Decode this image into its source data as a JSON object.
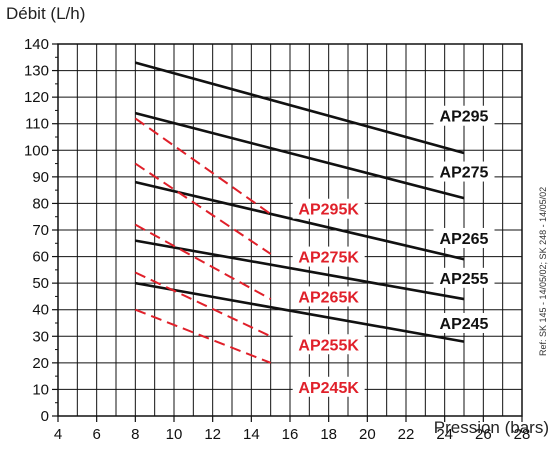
{
  "chart_data": {
    "type": "line",
    "ylabel": "Débit (L/h)",
    "xlabel": "Pression (bars)",
    "xlim": [
      4,
      28
    ],
    "ylim": [
      0,
      140
    ],
    "x_ticks": [
      "4",
      "6",
      "8",
      "10",
      "12",
      "14",
      "16",
      "18",
      "20",
      "22",
      "24",
      "26",
      "28"
    ],
    "y_ticks": [
      "0",
      "10",
      "20",
      "30",
      "40",
      "50",
      "60",
      "70",
      "80",
      "90",
      "100",
      "110",
      "120",
      "130",
      "140"
    ],
    "grid": true,
    "note": "Ref: SK 145 - 14/05/02; SK 248 - 14/05/02",
    "series": [
      {
        "name": "AP295",
        "style": "solid",
        "color": "#111111",
        "points": [
          [
            8,
            133
          ],
          [
            25,
            99
          ]
        ]
      },
      {
        "name": "AP275",
        "style": "solid",
        "color": "#111111",
        "points": [
          [
            8,
            114
          ],
          [
            25,
            82
          ]
        ]
      },
      {
        "name": "AP265",
        "style": "solid",
        "color": "#111111",
        "points": [
          [
            8,
            88
          ],
          [
            25,
            59
          ]
        ]
      },
      {
        "name": "AP255",
        "style": "solid",
        "color": "#111111",
        "points": [
          [
            8,
            66
          ],
          [
            25,
            44
          ]
        ]
      },
      {
        "name": "AP245",
        "style": "solid",
        "color": "#111111",
        "points": [
          [
            8,
            50
          ],
          [
            25,
            28
          ]
        ]
      },
      {
        "name": "AP295K",
        "style": "dashed",
        "color": "#e0202a",
        "points": [
          [
            8,
            112
          ],
          [
            15,
            76
          ]
        ]
      },
      {
        "name": "AP275K",
        "style": "dashed",
        "color": "#e0202a",
        "points": [
          [
            8,
            95
          ],
          [
            15,
            61
          ]
        ]
      },
      {
        "name": "AP265K",
        "style": "dashed",
        "color": "#e0202a",
        "points": [
          [
            8,
            72
          ],
          [
            15,
            44
          ]
        ]
      },
      {
        "name": "AP255K",
        "style": "dashed",
        "color": "#e0202a",
        "points": [
          [
            8,
            54
          ],
          [
            15,
            30
          ]
        ]
      },
      {
        "name": "AP245K",
        "style": "dashed",
        "color": "#e0202a",
        "points": [
          [
            8,
            40
          ],
          [
            15,
            20
          ]
        ]
      }
    ],
    "labels": [
      {
        "text": "AP295",
        "x": 25,
        "y": 113,
        "color": "#111111"
      },
      {
        "text": "AP275",
        "x": 25,
        "y": 92,
        "color": "#111111"
      },
      {
        "text": "AP265",
        "x": 25,
        "y": 67,
        "color": "#111111"
      },
      {
        "text": "AP255",
        "x": 25,
        "y": 52,
        "color": "#111111"
      },
      {
        "text": "AP245",
        "x": 25,
        "y": 35,
        "color": "#111111"
      },
      {
        "text": "AP295K",
        "x": 18,
        "y": 78,
        "color": "#e0202a"
      },
      {
        "text": "AP275K",
        "x": 18,
        "y": 60,
        "color": "#e0202a"
      },
      {
        "text": "AP265K",
        "x": 18,
        "y": 45,
        "color": "#e0202a"
      },
      {
        "text": "AP255K",
        "x": 18,
        "y": 27,
        "color": "#e0202a"
      },
      {
        "text": "AP245K",
        "x": 18,
        "y": 11,
        "color": "#e0202a"
      }
    ]
  }
}
